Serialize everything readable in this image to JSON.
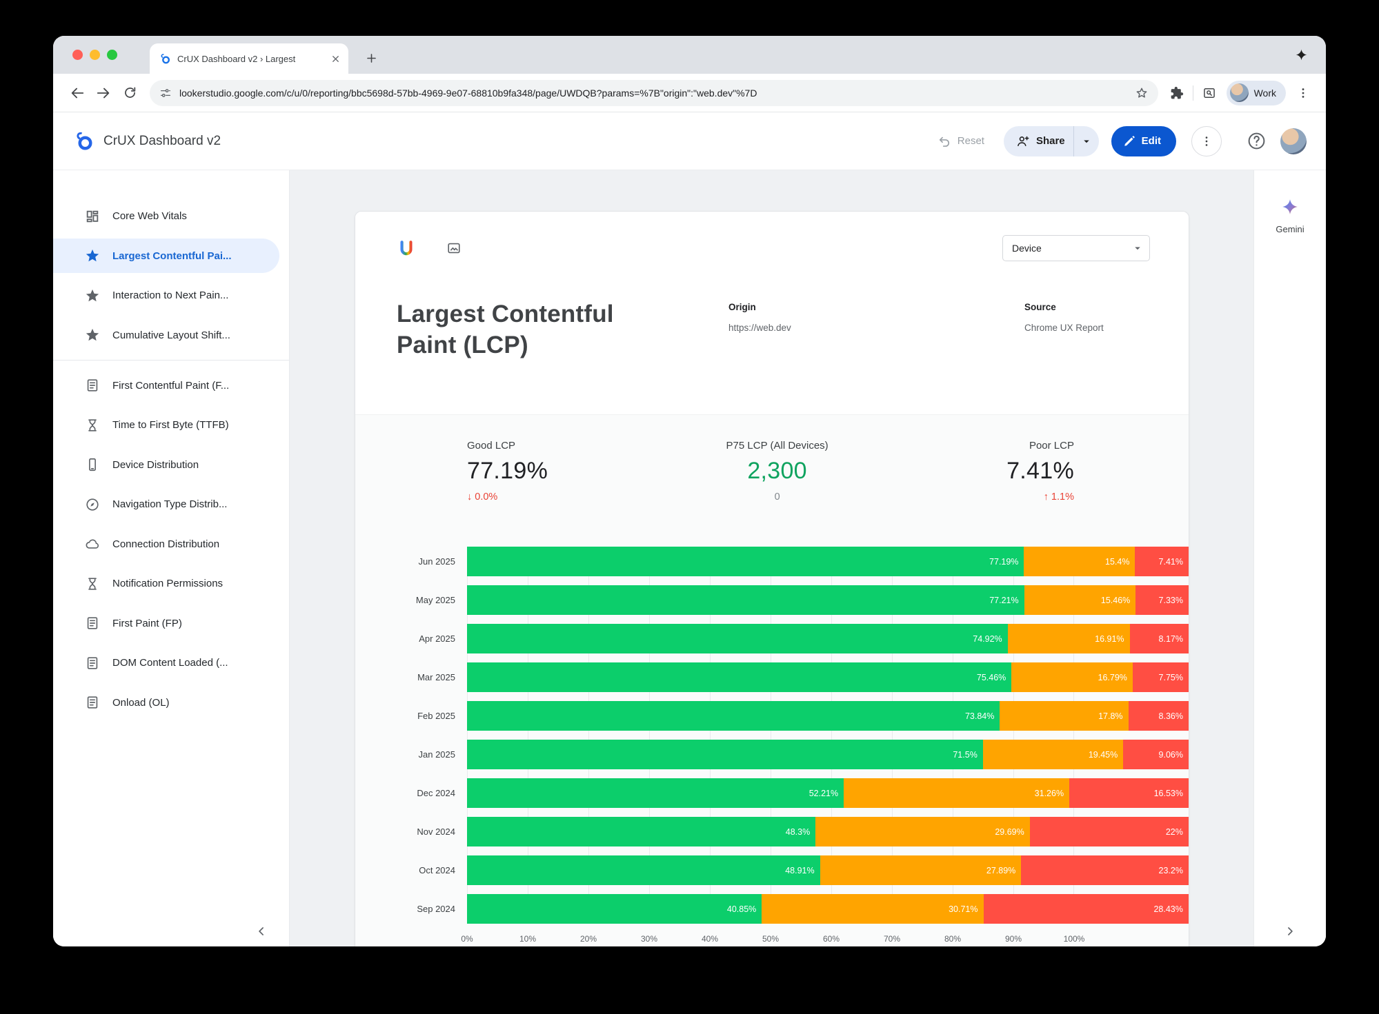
{
  "browser": {
    "tab_title": "CrUX Dashboard v2 › Largest",
    "url": "lookerstudio.google.com/c/u/0/reporting/bbc5698d-57bb-4969-9e07-68810b9fa348/page/UWDQB?params=%7B\"origin\":\"web.dev\"%7D",
    "profile_label": "Work"
  },
  "header": {
    "product_title": "CrUX Dashboard v2",
    "reset_label": "Reset",
    "share_label": "Share",
    "edit_label": "Edit"
  },
  "sidebar": {
    "items": [
      {
        "label": "Core Web Vitals",
        "icon": "dashboard-icon",
        "selected": false
      },
      {
        "label": "Largest Contentful Pai...",
        "icon": "star-icon",
        "selected": true
      },
      {
        "label": "Interaction to Next Pain...",
        "icon": "star-icon",
        "selected": false
      },
      {
        "label": "Cumulative Layout Shift...",
        "icon": "star-icon",
        "selected": false,
        "divider_after": true
      },
      {
        "label": "First Contentful Paint (F...",
        "icon": "doc-icon",
        "selected": false
      },
      {
        "label": "Time to First Byte (TTFB)",
        "icon": "hourglass-icon",
        "selected": false
      },
      {
        "label": "Device Distribution",
        "icon": "phone-icon",
        "selected": false
      },
      {
        "label": "Navigation Type Distrib...",
        "icon": "compass-icon",
        "selected": false
      },
      {
        "label": "Connection Distribution",
        "icon": "cloud-icon",
        "selected": false
      },
      {
        "label": "Notification Permissions",
        "icon": "hourglass-icon",
        "selected": false
      },
      {
        "label": "First Paint (FP)",
        "icon": "doc-icon",
        "selected": false
      },
      {
        "label": "DOM Content Loaded (...",
        "icon": "doc-icon",
        "selected": false
      },
      {
        "label": "Onload (OL)",
        "icon": "doc-icon",
        "selected": false
      }
    ]
  },
  "rail": {
    "gemini_label": "Gemini"
  },
  "report": {
    "filter_label": "Device",
    "title": "Largest Contentful Paint (LCP)",
    "origin": {
      "label": "Origin",
      "value": "https://web.dev"
    },
    "source": {
      "label": "Source",
      "value": "Chrome UX Report"
    },
    "stats": {
      "good": {
        "label": "Good LCP",
        "value": "77.19%",
        "delta": "↓ 0.0%"
      },
      "p75": {
        "label": "P75 LCP (All Devices)",
        "value": "2,300",
        "delta": "0"
      },
      "poor": {
        "label": "Poor LCP",
        "value": "7.41%",
        "delta": "↑ 1.1%"
      }
    }
  },
  "chart_data": {
    "type": "bar",
    "stacked": true,
    "orientation": "horizontal",
    "categories": [
      "Jun 2025",
      "May 2025",
      "Apr 2025",
      "Mar 2025",
      "Feb 2025",
      "Jan 2025",
      "Dec 2024",
      "Nov 2024",
      "Oct 2024",
      "Sep 2024"
    ],
    "series": [
      {
        "name": "good",
        "color": "#0cce6b",
        "values": [
          77.19,
          77.21,
          74.92,
          75.46,
          73.84,
          71.5,
          52.21,
          48.3,
          48.91,
          40.85
        ]
      },
      {
        "name": "needs_improvement",
        "color": "#ffa400",
        "values": [
          15.4,
          15.46,
          16.91,
          16.79,
          17.8,
          19.45,
          31.26,
          29.69,
          27.89,
          30.71
        ]
      },
      {
        "name": "poor",
        "color": "#ff4e43",
        "values": [
          7.41,
          7.33,
          8.17,
          7.75,
          8.36,
          9.06,
          16.53,
          22,
          23.2,
          28.43
        ]
      }
    ],
    "value_suffix": "%",
    "x_ticks": [
      "0%",
      "10%",
      "20%",
      "30%",
      "40%",
      "50%",
      "60%",
      "70%",
      "80%",
      "90%",
      "100%"
    ],
    "xlim": [
      0,
      100
    ],
    "grid": true,
    "legend": false
  },
  "colors": {
    "accent_blue": "#0b57d0",
    "selected_blue": "#1967d2",
    "good_green": "#0cce6b",
    "needs_improvement_orange": "#ffa400",
    "poor_red": "#ff4e43",
    "delta_red": "#e94235",
    "p75_green": "#0fa35f"
  }
}
